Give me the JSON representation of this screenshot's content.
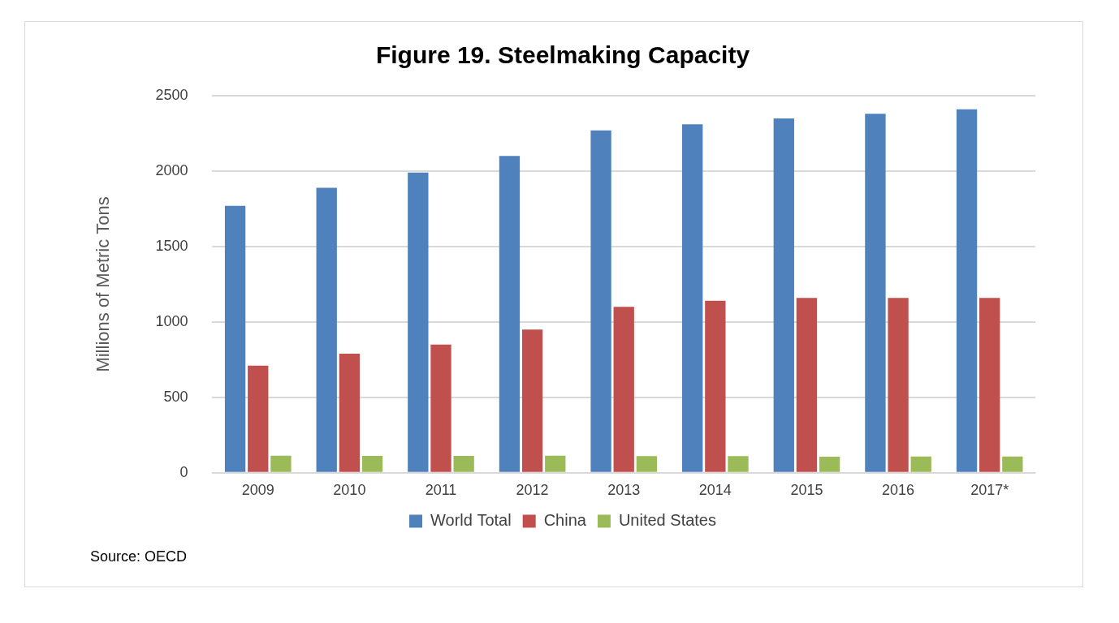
{
  "chart_data": {
    "type": "bar",
    "title": "Figure 19. Steelmaking Capacity",
    "y_label": "Millions of Metric Tons",
    "source": "Source: OECD",
    "categories": [
      "2009",
      "2010",
      "2011",
      "2012",
      "2013",
      "2014",
      "2015",
      "2016",
      "2017*"
    ],
    "series": [
      {
        "name": "World Total",
        "color": "#4f81bd",
        "values": [
          1770,
          1890,
          1990,
          2100,
          2270,
          2310,
          2350,
          2380,
          2410
        ]
      },
      {
        "name": "China",
        "color": "#c0504d",
        "values": [
          710,
          790,
          850,
          950,
          1100,
          1140,
          1160,
          1160,
          1160
        ]
      },
      {
        "name": "United States",
        "color": "#9bbb59",
        "values": [
          113,
          112,
          112,
          113,
          111,
          110,
          107,
          108,
          108
        ]
      }
    ],
    "ylim": [
      0,
      2500
    ],
    "yticks": [
      0,
      500,
      1000,
      1500,
      2000,
      2500
    ],
    "grid": true,
    "legend": "bottom"
  }
}
